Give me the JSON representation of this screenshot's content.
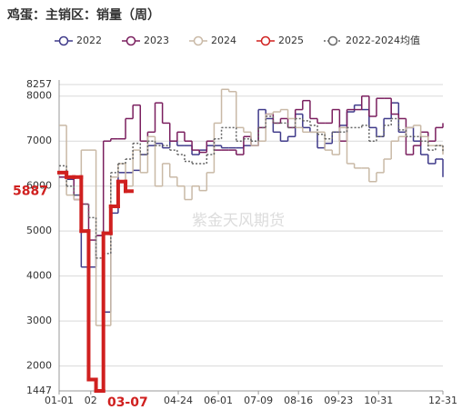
{
  "chart_data": {
    "type": "step-line",
    "title": "鸡蛋：主销区：销量（周）",
    "watermark": "紫金天风期货",
    "xlim": [
      0,
      364
    ],
    "ylim": [
      1447,
      8257
    ],
    "xticks": [
      {
        "value": 0,
        "label": "01-01"
      },
      {
        "value": 30,
        "label": "02"
      },
      {
        "value": 113,
        "label": "04-24"
      },
      {
        "value": 151,
        "label": "06-01"
      },
      {
        "value": 189,
        "label": "07-09"
      },
      {
        "value": 227,
        "label": "08-16"
      },
      {
        "value": 265,
        "label": "09-23"
      },
      {
        "value": 303,
        "label": "10-31"
      },
      {
        "value": 364,
        "label": "12-31"
      }
    ],
    "yticks": [
      1447,
      2000,
      3000,
      4000,
      5000,
      6000,
      7000,
      8000,
      8257
    ],
    "annotations": [
      {
        "axis": "y",
        "value": 5887,
        "label": "5887",
        "color": "#d0201f"
      },
      {
        "axis": "x",
        "value": 65,
        "label": "03-07",
        "color": "#d0201f"
      }
    ],
    "grid": true,
    "x": [
      0,
      7,
      14,
      21,
      28,
      35,
      42,
      49,
      56,
      63,
      70,
      77,
      84,
      91,
      98,
      105,
      112,
      119,
      126,
      133,
      140,
      147,
      154,
      161,
      168,
      175,
      182,
      189,
      196,
      203,
      210,
      217,
      224,
      231,
      238,
      245,
      252,
      259,
      266,
      273,
      280,
      287,
      294,
      301,
      308,
      315,
      322,
      329,
      336,
      343,
      350,
      357,
      364
    ],
    "series": [
      {
        "name": "2022",
        "color": "#3f3a8a",
        "style": "solid",
        "values": [
          6200,
          6150,
          5800,
          4200,
          4200,
          4900,
          3200,
          5400,
          6300,
          6300,
          6350,
          6700,
          6900,
          6950,
          6850,
          7000,
          6900,
          6900,
          6700,
          6800,
          6900,
          6900,
          6850,
          6850,
          6850,
          6900,
          6900,
          7700,
          7500,
          7200,
          7000,
          7100,
          7600,
          7300,
          7200,
          6850,
          6950,
          7200,
          7350,
          7650,
          7800,
          7700,
          7300,
          7100,
          7500,
          7850,
          7200,
          7300,
          7000,
          6700,
          6500,
          6600,
          6200
        ]
      },
      {
        "name": "2023",
        "color": "#7a1e5e",
        "style": "solid",
        "values": [
          6200,
          6200,
          5700,
          5600,
          4800,
          4900,
          7000,
          7050,
          7050,
          7500,
          7800,
          7000,
          7200,
          7850,
          7400,
          7000,
          7200,
          7000,
          6800,
          6750,
          7000,
          6800,
          6800,
          6800,
          6700,
          7100,
          6900,
          7300,
          7600,
          7400,
          7500,
          7300,
          7700,
          7900,
          7500,
          7400,
          7400,
          7700,
          7000,
          7700,
          7700,
          8000,
          7550,
          7950,
          7950,
          7600,
          7500,
          6700,
          6900,
          7200,
          7000,
          7300,
          7400
        ]
      },
      {
        "name": "2024",
        "color": "#c9b9a6",
        "style": "solid",
        "values": [
          7350,
          5800,
          5700,
          6800,
          6800,
          2900,
          2900,
          6200,
          6500,
          6000,
          6800,
          6300,
          7100,
          6000,
          6500,
          6200,
          6000,
          5700,
          6000,
          5900,
          6300,
          7400,
          8150,
          8100,
          7300,
          7200,
          6900,
          7000,
          7600,
          7650,
          7700,
          7500,
          7300,
          7200,
          7200,
          7200,
          6800,
          6700,
          7300,
          6500,
          6400,
          6400,
          6100,
          6300,
          6600,
          7000,
          7100,
          7300,
          7350,
          7100,
          6900,
          6900,
          6700
        ]
      },
      {
        "name": "2025",
        "color": "#d0201f",
        "style": "bold",
        "values": [
          6300,
          6200,
          6200,
          5000,
          1700,
          1447,
          4950,
          5550,
          6100,
          5887,
          null,
          null,
          null,
          null,
          null,
          null,
          null,
          null,
          null,
          null,
          null,
          null,
          null,
          null,
          null,
          null,
          null,
          null,
          null,
          null,
          null,
          null,
          null,
          null,
          null,
          null,
          null,
          null,
          null,
          null,
          null,
          null,
          null,
          null,
          null,
          null,
          null,
          null,
          null,
          null,
          null,
          null,
          null
        ]
      },
      {
        "name": "2022-2024均值",
        "color": "#666666",
        "style": "dotted",
        "values": [
          6450,
          6000,
          5800,
          5600,
          5300,
          4400,
          4500,
          6300,
          6500,
          6600,
          6950,
          6700,
          7000,
          6900,
          6900,
          6800,
          6700,
          6550,
          6500,
          6500,
          6700,
          7050,
          7300,
          7300,
          7000,
          7050,
          7000,
          7300,
          7550,
          7400,
          7400,
          7300,
          7500,
          7450,
          7350,
          7150,
          7050,
          7200,
          7200,
          7300,
          7300,
          7350,
          7000,
          7100,
          7350,
          7500,
          7250,
          7100,
          7100,
          7000,
          6800,
          6900,
          6750
        ]
      }
    ]
  }
}
